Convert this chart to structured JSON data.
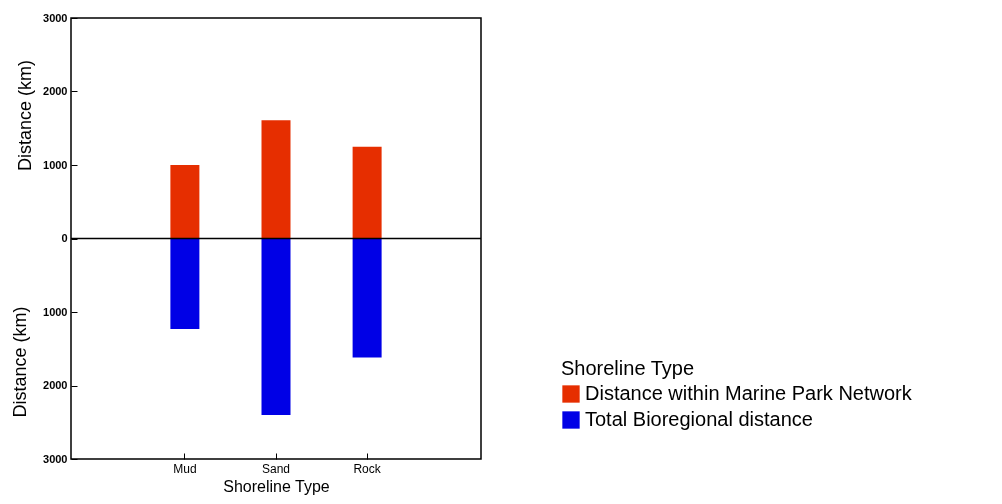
{
  "chart_data": {
    "type": "bar",
    "xlabel": "Shoreline Type",
    "ylabel": "Distance (km)",
    "annotations": [
      "Distance (km)"
    ],
    "legend_title": "Shoreline Type",
    "legend": "bottom right",
    "stacked": true,
    "categories": [
      "Mud",
      "Sand",
      "Rock"
    ],
    "series": [
      {
        "name": "Distance within Marine Park Network",
        "color": "#e62e00",
        "values": [
          1000,
          1610,
          1250
        ]
      },
      {
        "name": "Total Bioregional distance",
        "color": "#0000e6",
        "values": [
          -1230,
          -2400,
          -1620
        ]
      }
    ],
    "ylim": [
      -3000,
      3000
    ],
    "yticks": [
      {
        "value": -3000,
        "label": "3000"
      },
      {
        "value": -2000,
        "label": "2000"
      },
      {
        "value": -1000,
        "label": "1000"
      },
      0,
      1000,
      2000,
      3000
    ],
    "ref_lines": [
      {
        "axis": "y",
        "value": 0,
        "color": "#000000"
      }
    ]
  }
}
